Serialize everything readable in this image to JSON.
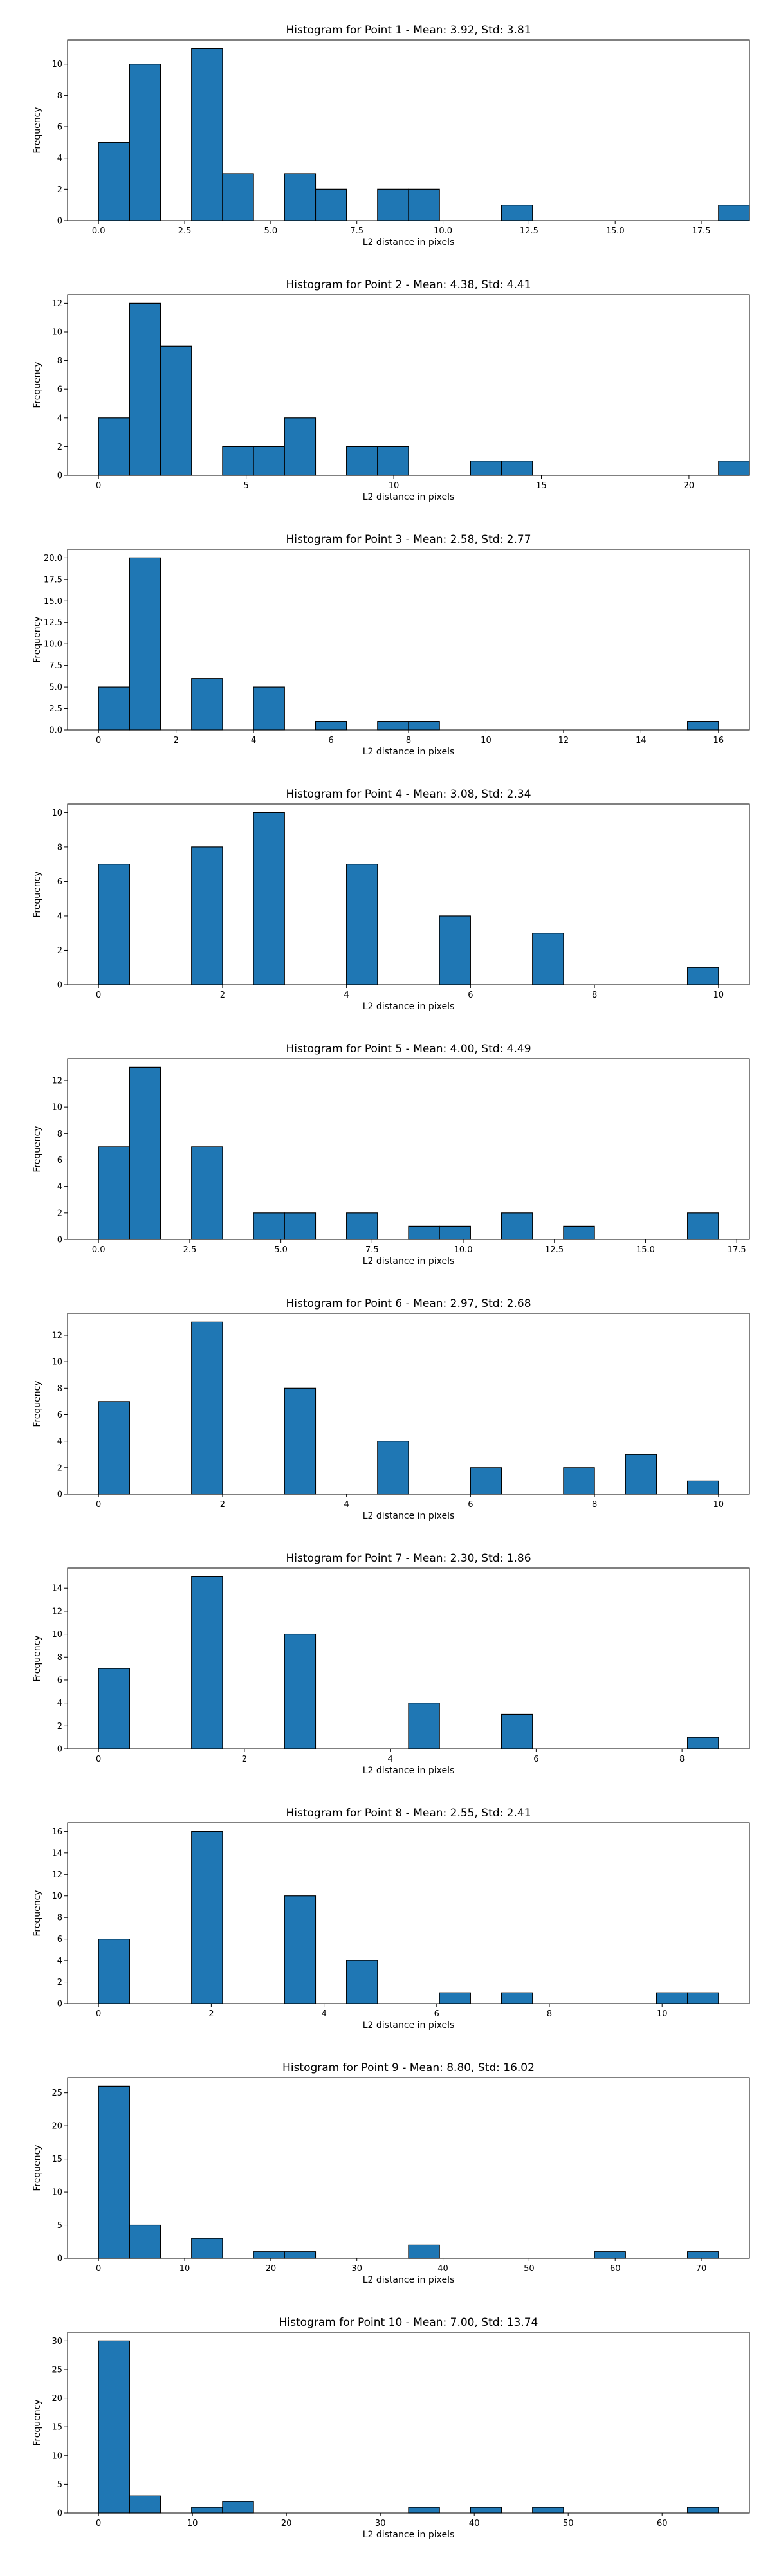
{
  "figure": {
    "background": "#ffffff"
  },
  "chart_data": [
    {
      "type": "bar",
      "title": "Histogram for Point 1 - Mean: 3.92, Std: 3.81",
      "xlabel": "L2 distance in pixels",
      "ylabel": "Frequency",
      "xlim": [
        -0.9,
        18.9
      ],
      "ylim": [
        0,
        11.55
      ],
      "xticks": [
        0,
        2.5,
        5,
        7.5,
        10,
        12.5,
        15,
        17.5
      ],
      "xtick_labels": [
        "0.0",
        "2.5",
        "5.0",
        "7.5",
        "10.0",
        "12.5",
        "15.0",
        "17.5"
      ],
      "yticks": [
        0,
        2,
        4,
        6,
        8,
        10
      ],
      "ytick_labels": [
        "0",
        "2",
        "4",
        "6",
        "8",
        "10"
      ],
      "bin_start": 0,
      "bin_width": 0.9,
      "bin_counts": [
        5,
        10,
        0,
        11,
        3,
        0,
        3,
        2,
        0,
        2,
        2,
        0,
        0,
        1,
        0,
        0,
        0,
        0,
        0,
        0,
        1
      ],
      "bar_color": "#1f77b4",
      "edge_color": "#000000",
      "grid": false,
      "legend": "none"
    },
    {
      "type": "bar",
      "title": "Histogram for Point 2 - Mean: 4.38, Std: 4.41",
      "xlabel": "L2 distance in pixels",
      "ylabel": "Frequency",
      "xlim": [
        -1.05,
        22.05
      ],
      "ylim": [
        0,
        12.6
      ],
      "xticks": [
        0,
        5,
        10,
        15,
        20
      ],
      "xtick_labels": [
        "0",
        "5",
        "10",
        "15",
        "20"
      ],
      "yticks": [
        0,
        2,
        4,
        6,
        8,
        10,
        12
      ],
      "ytick_labels": [
        "0",
        "2",
        "4",
        "6",
        "8",
        "10",
        "12"
      ],
      "bin_start": 0,
      "bin_width": 1.05,
      "bin_counts": [
        4,
        12,
        9,
        0,
        2,
        2,
        4,
        0,
        2,
        2,
        0,
        0,
        1,
        1,
        0,
        0,
        0,
        0,
        0,
        0,
        1
      ],
      "bar_color": "#1f77b4",
      "edge_color": "#000000",
      "grid": false,
      "legend": "none"
    },
    {
      "type": "bar",
      "title": "Histogram for Point 3 - Mean: 2.58, Std: 2.77",
      "xlabel": "L2 distance in pixels",
      "ylabel": "Frequency",
      "xlim": [
        -0.8,
        16.8
      ],
      "ylim": [
        0,
        21
      ],
      "xticks": [
        0,
        2,
        4,
        6,
        8,
        10,
        12,
        14,
        16
      ],
      "xtick_labels": [
        "0",
        "2",
        "4",
        "6",
        "8",
        "10",
        "12",
        "14",
        "16"
      ],
      "yticks": [
        0,
        2.5,
        5,
        7.5,
        10,
        12.5,
        15,
        17.5,
        20
      ],
      "ytick_labels": [
        "0.0",
        "2.5",
        "5.0",
        "7.5",
        "10.0",
        "12.5",
        "15.0",
        "17.5",
        "20.0"
      ],
      "bin_start": 0,
      "bin_width": 0.8,
      "bin_counts": [
        5,
        20,
        0,
        6,
        0,
        5,
        0,
        1,
        0,
        1,
        1,
        0,
        0,
        0,
        0,
        0,
        0,
        0,
        0,
        1
      ],
      "bar_color": "#1f77b4",
      "edge_color": "#000000",
      "grid": false,
      "legend": "none"
    },
    {
      "type": "bar",
      "title": "Histogram for Point 4 - Mean: 3.08, Std: 2.34",
      "xlabel": "L2 distance in pixels",
      "ylabel": "Frequency",
      "xlim": [
        -0.5,
        10.5
      ],
      "ylim": [
        0,
        10.5
      ],
      "xticks": [
        0,
        2,
        4,
        6,
        8,
        10
      ],
      "xtick_labels": [
        "0",
        "2",
        "4",
        "6",
        "8",
        "10"
      ],
      "yticks": [
        0,
        2,
        4,
        6,
        8,
        10
      ],
      "ytick_labels": [
        "0",
        "2",
        "4",
        "6",
        "8",
        "10"
      ],
      "bin_start": 0,
      "bin_width": 0.5,
      "bin_counts": [
        7,
        0,
        0,
        8,
        0,
        10,
        0,
        0,
        7,
        0,
        0,
        4,
        0,
        0,
        3,
        0,
        0,
        0,
        0,
        1
      ],
      "bar_color": "#1f77b4",
      "edge_color": "#000000",
      "grid": false,
      "legend": "none"
    },
    {
      "type": "bar",
      "title": "Histogram for Point 5 - Mean: 4.00, Std: 4.49",
      "xlabel": "L2 distance in pixels",
      "ylabel": "Frequency",
      "xlim": [
        -0.85,
        17.85
      ],
      "ylim": [
        0,
        13.65
      ],
      "xticks": [
        0,
        2.5,
        5,
        7.5,
        10,
        12.5,
        15,
        17.5
      ],
      "xtick_labels": [
        "0.0",
        "2.5",
        "5.0",
        "7.5",
        "10.0",
        "12.5",
        "15.0",
        "17.5"
      ],
      "yticks": [
        0,
        2,
        4,
        6,
        8,
        10,
        12
      ],
      "ytick_labels": [
        "0",
        "2",
        "4",
        "6",
        "8",
        "10",
        "12"
      ],
      "bin_start": 0,
      "bin_width": 0.85,
      "bin_counts": [
        7,
        13,
        0,
        7,
        0,
        2,
        2,
        0,
        2,
        0,
        1,
        1,
        0,
        2,
        0,
        1,
        0,
        0,
        0,
        2
      ],
      "bar_color": "#1f77b4",
      "edge_color": "#000000",
      "grid": false,
      "legend": "none"
    },
    {
      "type": "bar",
      "title": "Histogram for Point 6 - Mean: 2.97, Std: 2.68",
      "xlabel": "L2 distance in pixels",
      "ylabel": "Frequency",
      "xlim": [
        -0.5,
        10.5
      ],
      "ylim": [
        0,
        13.65
      ],
      "xticks": [
        0,
        2,
        4,
        6,
        8,
        10
      ],
      "xtick_labels": [
        "0",
        "2",
        "4",
        "6",
        "8",
        "10"
      ],
      "yticks": [
        0,
        2,
        4,
        6,
        8,
        10,
        12
      ],
      "ytick_labels": [
        "0",
        "2",
        "4",
        "6",
        "8",
        "10",
        "12"
      ],
      "bin_start": 0,
      "bin_width": 0.5,
      "bin_counts": [
        7,
        0,
        0,
        13,
        0,
        0,
        8,
        0,
        0,
        4,
        0,
        0,
        2,
        0,
        0,
        2,
        0,
        3,
        0,
        1
      ],
      "bar_color": "#1f77b4",
      "edge_color": "#000000",
      "grid": false,
      "legend": "none"
    },
    {
      "type": "bar",
      "title": "Histogram for Point 7 - Mean: 2.30, Std: 1.86",
      "xlabel": "L2 distance in pixels",
      "ylabel": "Frequency",
      "xlim": [
        -0.425,
        8.925
      ],
      "ylim": [
        0,
        15.75
      ],
      "xticks": [
        0,
        2,
        4,
        6,
        8
      ],
      "xtick_labels": [
        "0",
        "2",
        "4",
        "6",
        "8"
      ],
      "yticks": [
        0,
        2,
        4,
        6,
        8,
        10,
        12,
        14
      ],
      "ytick_labels": [
        "0",
        "2",
        "4",
        "6",
        "8",
        "10",
        "12",
        "14"
      ],
      "bin_start": 0,
      "bin_width": 0.425,
      "bin_counts": [
        7,
        0,
        0,
        15,
        0,
        0,
        10,
        0,
        0,
        0,
        4,
        0,
        0,
        3,
        0,
        0,
        0,
        0,
        0,
        1
      ],
      "bar_color": "#1f77b4",
      "edge_color": "#000000",
      "grid": false,
      "legend": "none"
    },
    {
      "type": "bar",
      "title": "Histogram for Point 8 - Mean: 2.55, Std: 2.41",
      "xlabel": "L2 distance in pixels",
      "ylabel": "Frequency",
      "xlim": [
        -0.55,
        11.55
      ],
      "ylim": [
        0,
        16.8
      ],
      "xticks": [
        0,
        2,
        4,
        6,
        8,
        10
      ],
      "xtick_labels": [
        "0",
        "2",
        "4",
        "6",
        "8",
        "10"
      ],
      "yticks": [
        0,
        2,
        4,
        6,
        8,
        10,
        12,
        14,
        16
      ],
      "ytick_labels": [
        "0",
        "2",
        "4",
        "6",
        "8",
        "10",
        "12",
        "14",
        "16"
      ],
      "bin_start": 0,
      "bin_width": 0.55,
      "bin_counts": [
        6,
        0,
        0,
        16,
        0,
        0,
        10,
        0,
        4,
        0,
        0,
        1,
        0,
        1,
        0,
        0,
        0,
        0,
        1,
        1
      ],
      "bar_color": "#1f77b4",
      "edge_color": "#000000",
      "grid": false,
      "legend": "none"
    },
    {
      "type": "bar",
      "title": "Histogram for Point 9 - Mean: 8.80, Std: 16.02",
      "xlabel": "L2 distance in pixels",
      "ylabel": "Frequency",
      "xlim": [
        -3.6,
        75.6
      ],
      "ylim": [
        0,
        27.3
      ],
      "xticks": [
        0,
        10,
        20,
        30,
        40,
        50,
        60,
        70
      ],
      "xtick_labels": [
        "0",
        "10",
        "20",
        "30",
        "40",
        "50",
        "60",
        "70"
      ],
      "yticks": [
        0,
        5,
        10,
        15,
        20,
        25
      ],
      "ytick_labels": [
        "0",
        "5",
        "10",
        "15",
        "20",
        "25"
      ],
      "bin_start": 0,
      "bin_width": 3.6,
      "bin_counts": [
        26,
        5,
        0,
        3,
        0,
        1,
        1,
        0,
        0,
        0,
        2,
        0,
        0,
        0,
        0,
        0,
        1,
        0,
        0,
        1
      ],
      "bar_color": "#1f77b4",
      "edge_color": "#000000",
      "grid": false,
      "legend": "none"
    },
    {
      "type": "bar",
      "title": "Histogram for Point 10 - Mean: 7.00, Std: 13.74",
      "xlabel": "L2 distance in pixels",
      "ylabel": "Frequency",
      "xlim": [
        -3.3,
        69.3
      ],
      "ylim": [
        0,
        31.5
      ],
      "xticks": [
        0,
        10,
        20,
        30,
        40,
        50,
        60
      ],
      "xtick_labels": [
        "0",
        "10",
        "20",
        "30",
        "40",
        "50",
        "60"
      ],
      "yticks": [
        0,
        5,
        10,
        15,
        20,
        25,
        30
      ],
      "ytick_labels": [
        "0",
        "5",
        "10",
        "15",
        "20",
        "25",
        "30"
      ],
      "bin_start": 0,
      "bin_width": 3.3,
      "bin_counts": [
        30,
        3,
        0,
        1,
        2,
        0,
        0,
        0,
        0,
        0,
        1,
        0,
        1,
        0,
        1,
        0,
        0,
        0,
        0,
        1
      ],
      "bar_color": "#1f77b4",
      "edge_color": "#000000",
      "grid": false,
      "legend": "none"
    }
  ]
}
